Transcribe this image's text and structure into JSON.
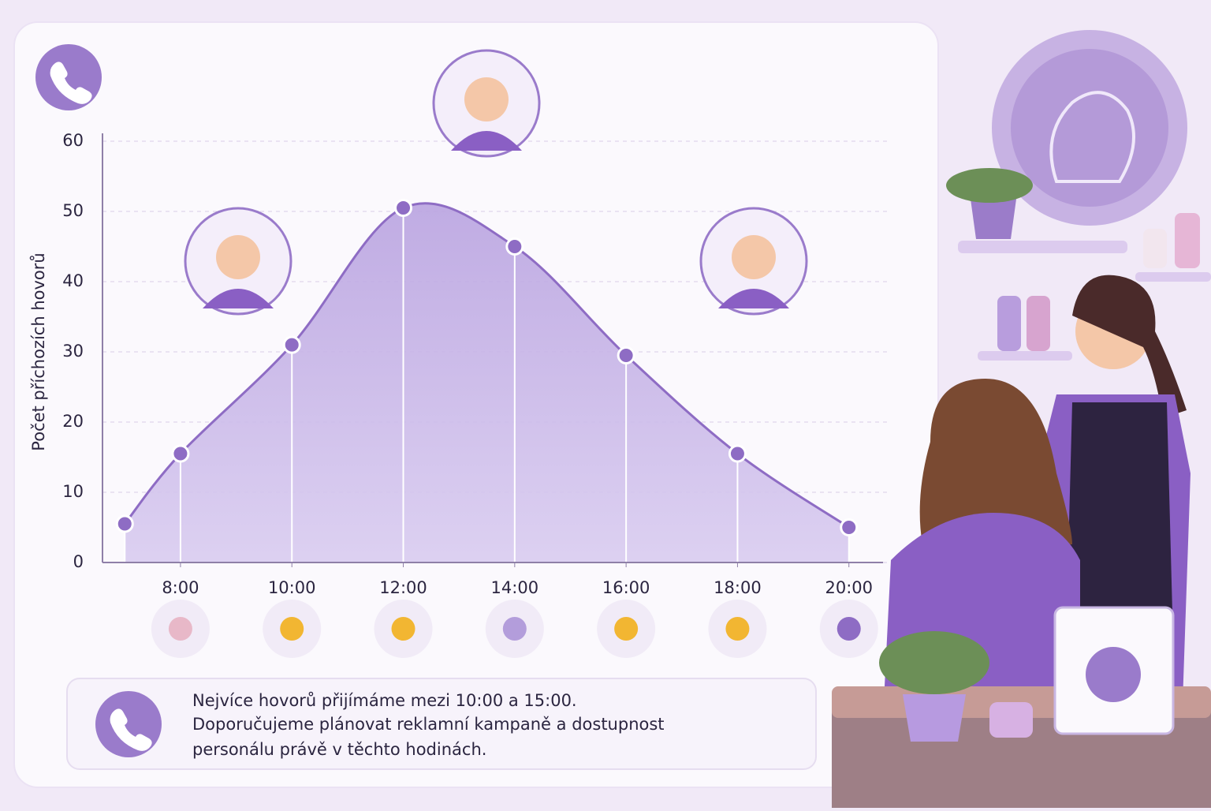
{
  "chart_data": {
    "type": "area-line",
    "y_label": "Počet příchozích hovorů",
    "x": [
      7,
      8,
      10,
      12,
      14,
      16,
      18,
      20
    ],
    "series": [
      {
        "color": "#8e6cc4",
        "values": [
          5.5,
          15.5,
          31,
          50.5,
          45,
          29.5,
          15.5,
          5
        ]
      }
    ],
    "xlim": [
      6.6,
      20.4
    ],
    "xticks": [
      {
        "value": 8,
        "label": "8:00"
      },
      {
        "value": 10,
        "label": "10:00"
      },
      {
        "value": 12,
        "label": "12:00"
      },
      {
        "value": 14,
        "label": "14:00"
      },
      {
        "value": 16,
        "label": "16:00"
      },
      {
        "value": 18,
        "label": "18:00"
      },
      {
        "value": 20,
        "label": "20:00"
      }
    ],
    "ylim": [
      0,
      60
    ],
    "yticks": [
      0,
      10,
      20,
      30,
      40,
      50,
      60
    ],
    "grid": true,
    "note_lines": [
      "Nejvíce hovorů přijímáme mezi 10:00 a 15:00.",
      "Doporučujeme plánovat reklamní kampaně a dostupnost",
      "personálu právě v těchto hodinách."
    ]
  }
}
